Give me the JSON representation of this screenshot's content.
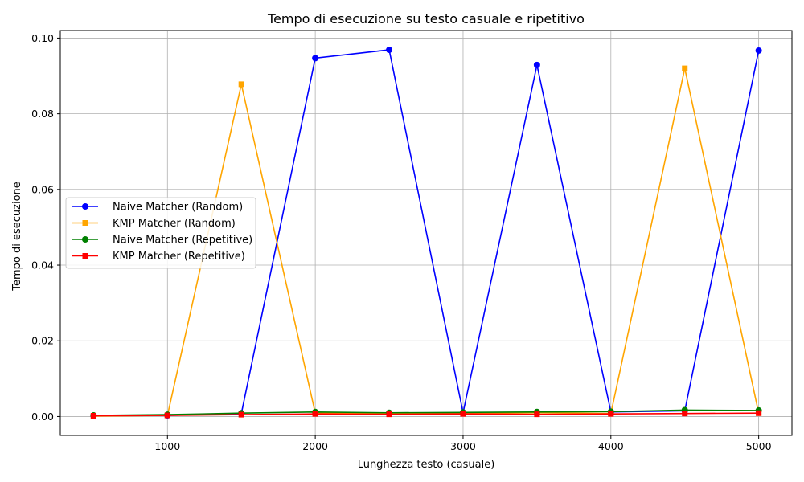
{
  "chart_data": {
    "type": "line",
    "title": "Tempo di esecuzione su testo casuale e ripetitivo",
    "xlabel": "Lunghezza testo (casuale)",
    "ylabel": "Tempo di esecuzione",
    "x": [
      500,
      1000,
      1500,
      2000,
      2500,
      3000,
      3500,
      4000,
      4500,
      5000
    ],
    "xlim": [
      275,
      5225
    ],
    "ylim": [
      -0.005,
      0.102
    ],
    "xticks": [
      1000,
      2000,
      3000,
      4000,
      5000
    ],
    "yticks": [
      0.0,
      0.02,
      0.04,
      0.06,
      0.08,
      0.1
    ],
    "ytick_labels": [
      "0.00",
      "0.02",
      "0.04",
      "0.06",
      "0.08",
      "0.10"
    ],
    "grid": true,
    "legend_position": "center-left",
    "series": [
      {
        "name": "Naive Matcher (Random)",
        "color": "#0000ff",
        "marker": "circle",
        "values": [
          0.0002,
          0.0003,
          0.0008,
          0.0947,
          0.0969,
          0.001,
          0.0929,
          0.0012,
          0.0015,
          0.0967
        ]
      },
      {
        "name": "KMP Matcher (Random)",
        "color": "#ffa500",
        "marker": "square",
        "values": [
          0.0001,
          0.0003,
          0.0878,
          0.0009,
          0.0008,
          0.0008,
          0.001,
          0.0008,
          0.092,
          0.0009
        ]
      },
      {
        "name": "Naive Matcher (Repetitive)",
        "color": "#008000",
        "marker": "circle",
        "values": [
          0.0003,
          0.0005,
          0.0009,
          0.0012,
          0.001,
          0.0011,
          0.0012,
          0.0013,
          0.0017,
          0.0016
        ]
      },
      {
        "name": "KMP Matcher (Repetitive)",
        "color": "#ff0000",
        "marker": "square",
        "values": [
          0.0002,
          0.0003,
          0.0005,
          0.0007,
          0.0006,
          0.0007,
          0.0006,
          0.0007,
          0.0008,
          0.0009
        ]
      }
    ]
  }
}
